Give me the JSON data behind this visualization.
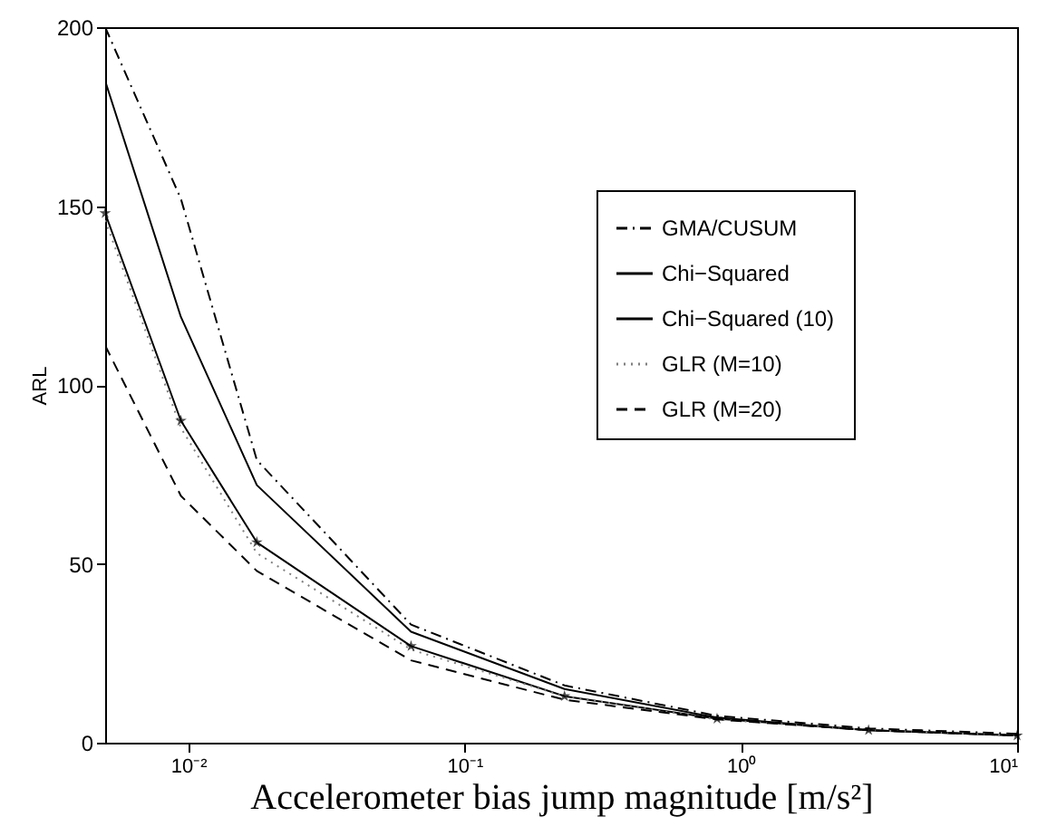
{
  "chart_data": {
    "type": "line",
    "xlabel": "Accelerometer bias jump magnitude [m/s²]",
    "ylabel": "ARL",
    "x": [
      0.005,
      0.0094,
      0.0177,
      0.064,
      0.23,
      0.82,
      2.9,
      10
    ],
    "xlim": [
      0.005,
      10
    ],
    "ylim": [
      0,
      200
    ],
    "log": "x",
    "xticks": [
      {
        "value": 0.01,
        "label": "10⁻²"
      },
      {
        "value": 0.1,
        "label": "10⁻¹"
      },
      {
        "value": 1,
        "label": "10⁰"
      },
      {
        "value": 10,
        "label": "10¹"
      }
    ],
    "yticks": [
      0,
      50,
      100,
      150,
      200
    ],
    "grid": false,
    "legend": "top right",
    "series": [
      {
        "name": "GMA/CUSUM",
        "color": "#000000",
        "line_style": "dashdot",
        "values": [
          200,
          152,
          79,
          33,
          16,
          7.5,
          4,
          2.5
        ]
      },
      {
        "name": "Chi−Squared",
        "color": "#000000",
        "line_style": "solid",
        "values": [
          185,
          119,
          72,
          31,
          15,
          7,
          3.5,
          2
        ]
      },
      {
        "name": "Chi−Squared (10)",
        "color": "#000000",
        "line_style": "solid",
        "marker": "star",
        "values": [
          148,
          90,
          56,
          27,
          13,
          6.7,
          3.5,
          2
        ]
      },
      {
        "name": "GLR (M=10)",
        "color": "#808080",
        "line_style": "dotted",
        "values": [
          146,
          88,
          53,
          26,
          13,
          6.5,
          3.5,
          2
        ]
      },
      {
        "name": "GLR (M=20)",
        "color": "#000000",
        "line_style": "dashed",
        "values": [
          111,
          69,
          48,
          23,
          12,
          6.5,
          3.5,
          2
        ]
      }
    ]
  }
}
